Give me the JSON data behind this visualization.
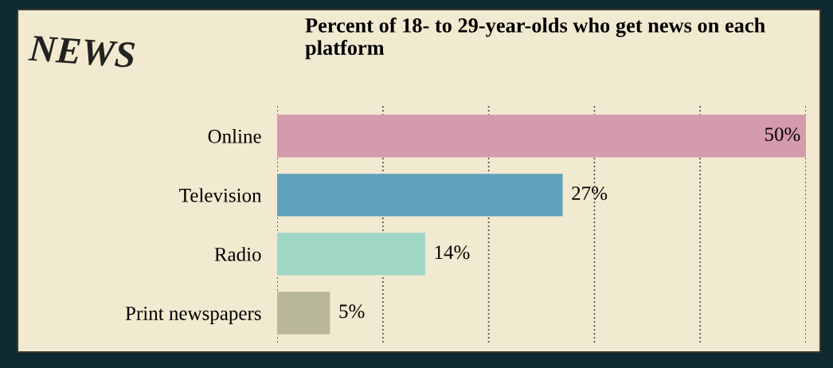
{
  "chart_data": {
    "type": "bar",
    "orientation": "horizontal",
    "title": "Percent of 18- to 29-year-olds who get news on each platform",
    "annotations": [
      "NEWS"
    ],
    "categories": [
      "Online",
      "Television",
      "Radio",
      "Print newspapers"
    ],
    "values": [
      50,
      27,
      14,
      5
    ],
    "colors": [
      "#d49aad",
      "#5fa2bc",
      "#9fd6c6",
      "#b8b79c"
    ],
    "value_labels": [
      "50%",
      "27%",
      "14%",
      "5%"
    ],
    "xlim": [
      0,
      50
    ],
    "xticks": [
      {
        "value": 0,
        "label": null
      },
      {
        "value": 10,
        "label": null
      },
      {
        "value": 20,
        "label": null
      },
      {
        "value": 30,
        "label": null
      },
      {
        "value": 40,
        "label": null
      },
      {
        "value": 50,
        "label": null
      }
    ],
    "grid": "x",
    "tick_labels": "y",
    "legend": false
  }
}
